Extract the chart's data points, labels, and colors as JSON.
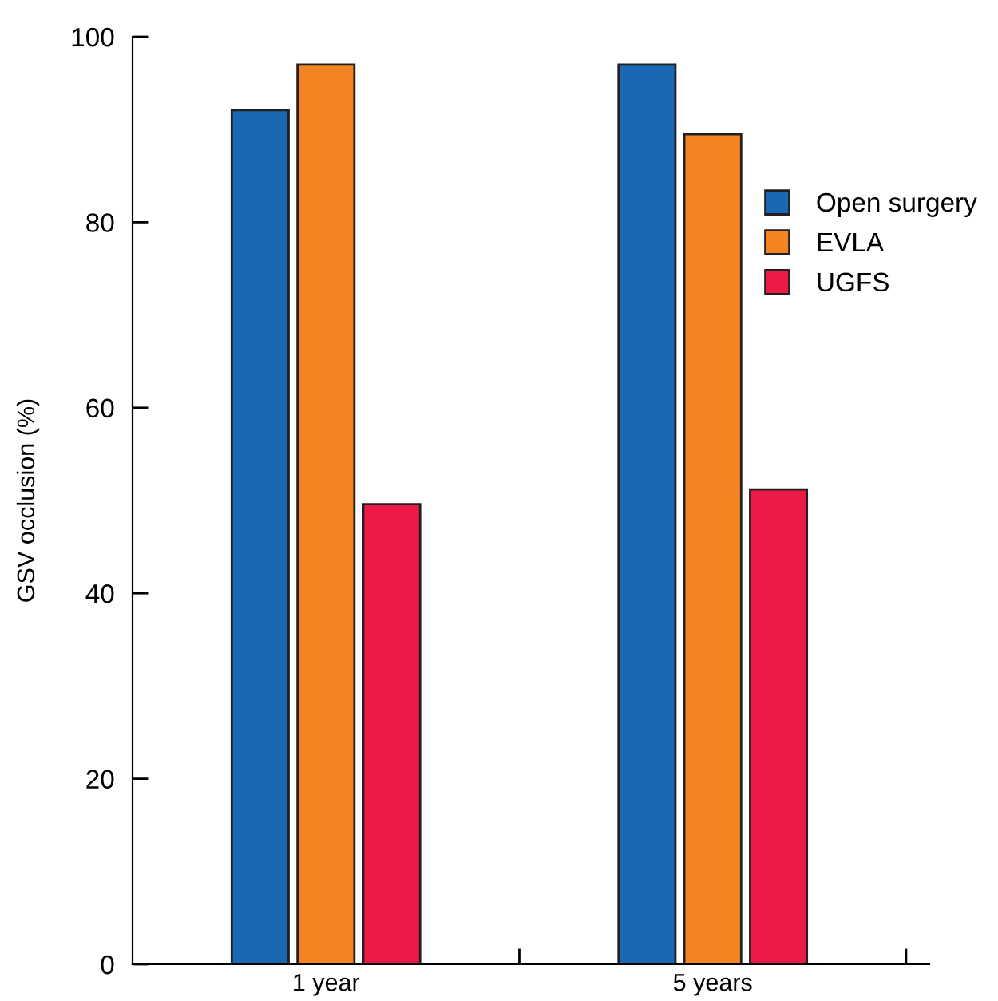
{
  "chart_data": {
    "type": "bar",
    "ylabel": "GSV occlusion (%)",
    "categories": [
      "1 year",
      "5 years"
    ],
    "series": [
      {
        "name": "Open surgery",
        "color": "#1a67b2",
        "values": [
          92.1,
          97.0
        ]
      },
      {
        "name": "EVLA",
        "color": "#f38421",
        "values": [
          97.0,
          89.5
        ]
      },
      {
        "name": "UGFS",
        "color": "#ec1a46",
        "values": [
          49.6,
          51.2
        ]
      }
    ],
    "ylim": [
      0,
      100
    ],
    "yticks": [
      0,
      20,
      40,
      60,
      80,
      100
    ],
    "grid": false,
    "legend": "top right"
  }
}
